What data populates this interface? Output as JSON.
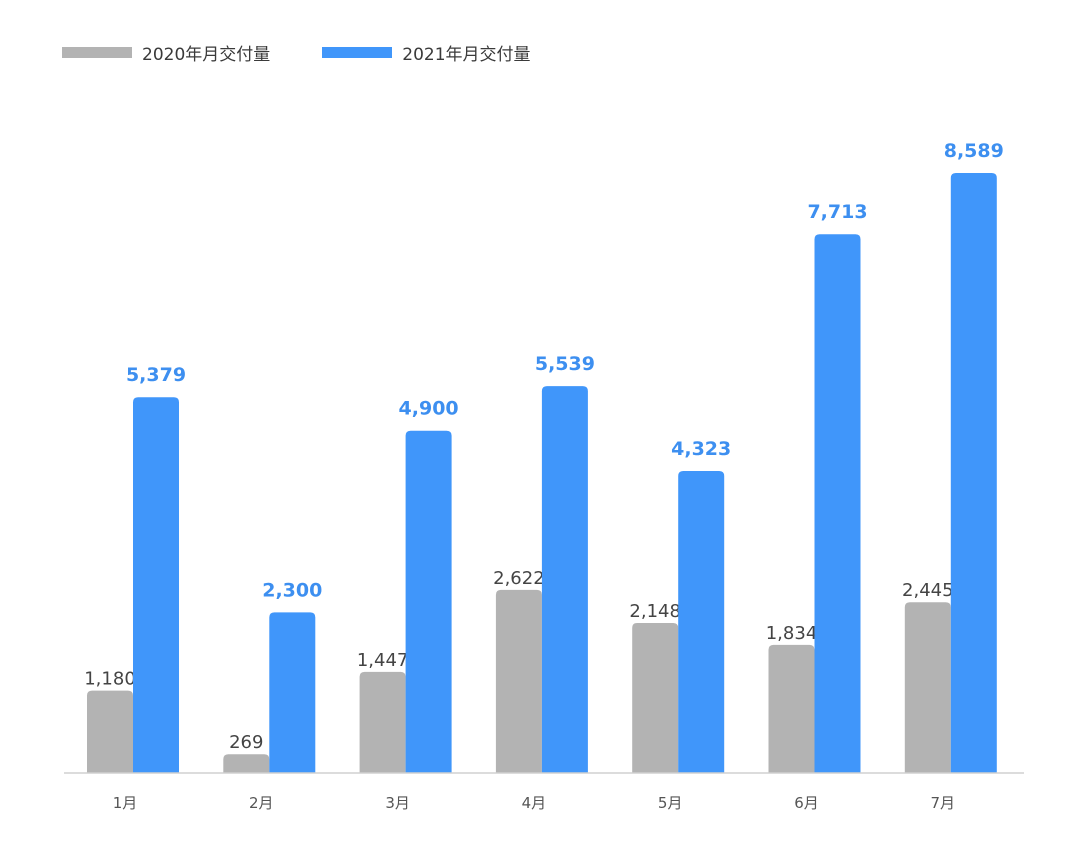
{
  "colors": {
    "series_2020": "#b3b3b3",
    "series_2021": "#4096fa",
    "label_2020": "#444444",
    "label_2021": "#3d8ff0",
    "axis": "#d0d0d0",
    "tick": "#555555"
  },
  "legend": {
    "item_2020": "2020年月交付量",
    "item_2021": "2021年月交付量"
  },
  "chart_data": {
    "type": "bar",
    "title": "",
    "xlabel": "",
    "ylabel": "",
    "ylim": [
      0,
      9000
    ],
    "grid": false,
    "legend_position": "top-left",
    "categories": [
      "1月",
      "2月",
      "3月",
      "4月",
      "5月",
      "6月",
      "7月"
    ],
    "series": [
      {
        "name": "2020年月交付量",
        "values": [
          1180,
          269,
          1447,
          2622,
          2148,
          1834,
          2445
        ],
        "labels": [
          "1,180",
          "269",
          "1,447",
          "2,622",
          "2,148",
          "1,834",
          "2,445"
        ]
      },
      {
        "name": "2021年月交付量",
        "values": [
          5379,
          2300,
          4900,
          5539,
          4323,
          7713,
          8589
        ],
        "labels": [
          "5,379",
          "2,300",
          "4,900",
          "5,539",
          "4,323",
          "7,713",
          "8,589"
        ]
      }
    ]
  }
}
